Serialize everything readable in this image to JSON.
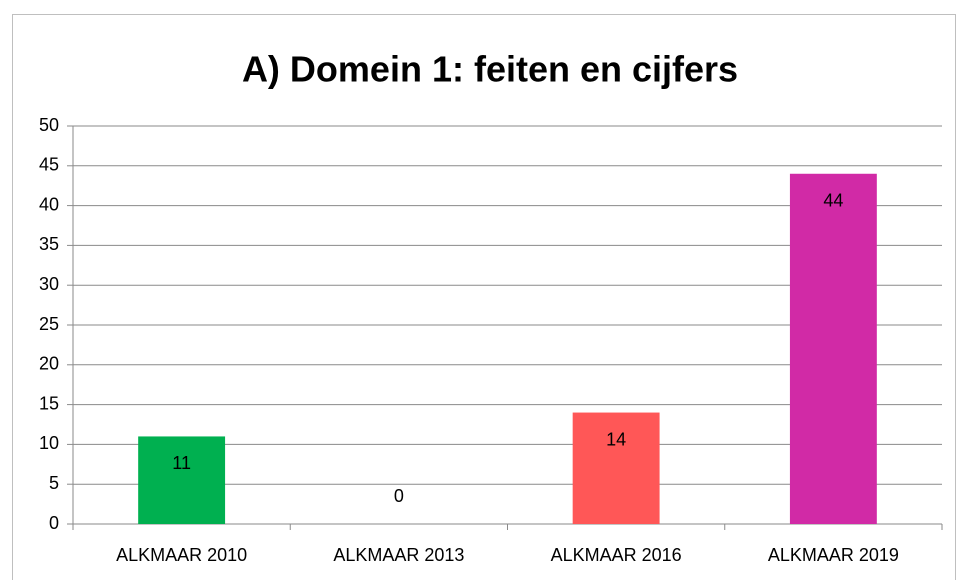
{
  "chart_data": {
    "type": "bar",
    "title": "A) Domein 1: feiten en cijfers",
    "categories": [
      "ALKMAAR 2010",
      "ALKMAAR 2013",
      "ALKMAAR 2016",
      "ALKMAAR 2019"
    ],
    "values": [
      11,
      0,
      14,
      44
    ],
    "colors": [
      "#00b050",
      null,
      "#ff5757",
      "#d12aa6"
    ],
    "ylim": [
      0,
      50
    ],
    "yticks": [
      0,
      5,
      10,
      15,
      20,
      25,
      30,
      35,
      40,
      45,
      50
    ],
    "grid": true
  }
}
